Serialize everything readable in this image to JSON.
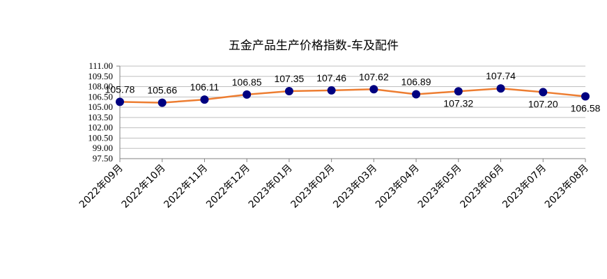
{
  "chart_data": {
    "type": "line",
    "title": "五金产品生产价格指数-车及配件",
    "xlabel": "",
    "ylabel": "",
    "categories": [
      "2022年09月",
      "2022年10月",
      "2022年11月",
      "2022年12月",
      "2023年01月",
      "2023年02月",
      "2023年03月",
      "2023年04月",
      "2023年05月",
      "2023年06月",
      "2023年07月",
      "2023年08月"
    ],
    "series": [
      {
        "values": [
          105.78,
          105.66,
          106.11,
          106.85,
          107.35,
          107.46,
          107.62,
          106.89,
          107.32,
          107.74,
          107.2,
          106.58
        ],
        "labels": [
          "105.78",
          "105.66",
          "106.11",
          "106.85",
          "107.35",
          "107.46",
          "107.62",
          "106.89",
          "107.32",
          "107.74",
          "107.20",
          "106.58"
        ],
        "line_color": "#ed7d31",
        "marker_color": "#000080"
      }
    ],
    "ylim": [
      97.5,
      111.0
    ],
    "yticks": [
      "111.00",
      "109.50",
      "108.00",
      "106.50",
      "105.00",
      "103.50",
      "102.00",
      "100.50",
      "99.00",
      "97.50"
    ],
    "grid": true,
    "legend": "none"
  }
}
